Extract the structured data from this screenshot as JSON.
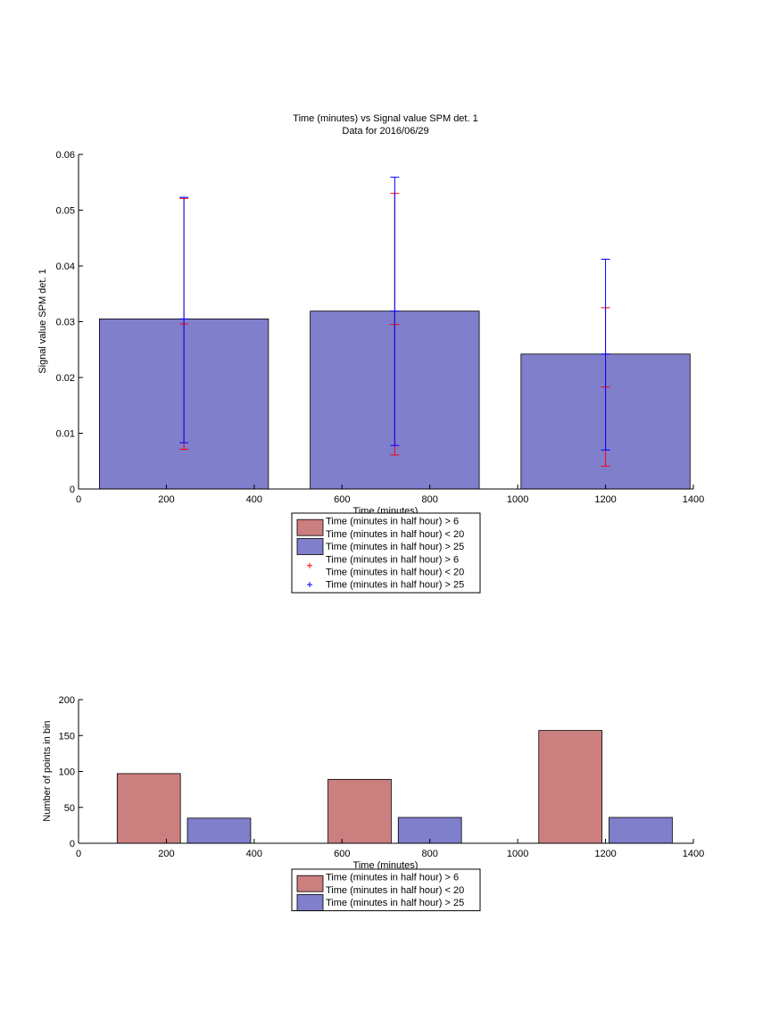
{
  "chart_data": [
    {
      "type": "bar",
      "title": "Time (minutes) vs Signal value SPM det. 1",
      "subtitle": "Data for 2016/06/29",
      "xlabel": "Time (minutes)",
      "ylabel": "Signal value SPM det. 1",
      "xlim": [
        0,
        1400
      ],
      "ylim": [
        0,
        0.06
      ],
      "xticks": [
        0,
        200,
        400,
        600,
        800,
        1000,
        1200,
        1400
      ],
      "xtick_labels": [
        "0",
        "200",
        "400",
        "600",
        "800",
        "1000",
        "1200",
        "1400"
      ],
      "yticks": [
        0,
        0.01,
        0.02,
        0.03,
        0.04,
        0.05,
        0.06
      ],
      "ytick_labels": [
        "0",
        "0.01",
        "0.02",
        "0.03",
        "0.04",
        "0.05",
        "0.06"
      ],
      "bar_width": 385,
      "series": [
        {
          "name": "Time (minutes in half hour) > 6\nTime (minutes in half hour) < 20",
          "color": "#cc7f7f",
          "x": [
            240,
            720,
            1200
          ],
          "values": [
            0,
            0,
            0
          ]
        },
        {
          "name": "Time (minutes in half hour) > 25",
          "color": "#7f7fcc",
          "x": [
            240,
            720,
            1200
          ],
          "values": [
            0.0305,
            0.0319,
            0.0242
          ]
        }
      ],
      "error_bars": [
        {
          "name": "Time (minutes in half hour) > 6\nTime (minutes in half hour) < 20",
          "color": "#ff0000",
          "x": [
            240,
            720,
            1200
          ],
          "lower": [
            0.0071,
            0.0061,
            0.0041
          ],
          "center": [
            0.0296,
            0.0295,
            0.0183
          ],
          "upper": [
            0.0521,
            0.053,
            0.0325
          ]
        },
        {
          "name": "Time (minutes in half hour) > 25",
          "color": "#0000ff",
          "x": [
            240,
            720,
            1200
          ],
          "lower": [
            0.0083,
            0.0078,
            0.007
          ],
          "center": [
            0.0305,
            0.0319,
            0.0242
          ],
          "upper": [
            0.0523,
            0.0559,
            0.0412
          ]
        }
      ],
      "legend": {
        "placement": "below",
        "entries": [
          {
            "kind": "patch",
            "color": "#cc7f7f",
            "lines": [
              "Time (minutes in half hour) > 6",
              "Time (minutes in half hour) < 20"
            ]
          },
          {
            "kind": "patch",
            "color": "#7f7fcc",
            "lines": [
              "Time (minutes in half hour) > 25"
            ]
          },
          {
            "kind": "marker",
            "color": "#ff0000",
            "lines": [
              "Time (minutes in half hour) > 6",
              "Time (minutes in half hour) < 20"
            ]
          },
          {
            "kind": "marker",
            "color": "#0000ff",
            "lines": [
              "Time (minutes in half hour) > 25"
            ]
          }
        ]
      },
      "grid": false
    },
    {
      "type": "bar",
      "title": "",
      "xlabel": "Time (minutes)",
      "ylabel": "Number of points in bin",
      "xlim": [
        0,
        1400
      ],
      "ylim": [
        0,
        200
      ],
      "xticks": [
        0,
        200,
        400,
        600,
        800,
        1000,
        1200,
        1400
      ],
      "xtick_labels": [
        "0",
        "200",
        "400",
        "600",
        "800",
        "1000",
        "1200",
        "1400"
      ],
      "yticks": [
        0,
        50,
        100,
        150,
        200
      ],
      "ytick_labels": [
        "0",
        "50",
        "100",
        "150",
        "200"
      ],
      "bar_width": 144,
      "series": [
        {
          "name": "Time (minutes in half hour) > 6\nTime (minutes in half hour) < 20",
          "color": "#cc7f7f",
          "x": [
            160,
            640,
            1120
          ],
          "values": [
            97,
            89,
            157
          ]
        },
        {
          "name": "Time (minutes in half hour) > 25",
          "color": "#7f7fcc",
          "x": [
            320,
            800,
            1280
          ],
          "values": [
            35,
            36,
            36
          ]
        }
      ],
      "legend": {
        "placement": "below",
        "entries": [
          {
            "kind": "patch",
            "color": "#cc7f7f",
            "lines": [
              "Time (minutes in half hour) > 6",
              "Time (minutes in half hour) < 20"
            ]
          },
          {
            "kind": "patch",
            "color": "#7f7fcc",
            "lines": [
              "Time (minutes in half hour) > 25"
            ]
          }
        ]
      },
      "grid": false
    }
  ]
}
